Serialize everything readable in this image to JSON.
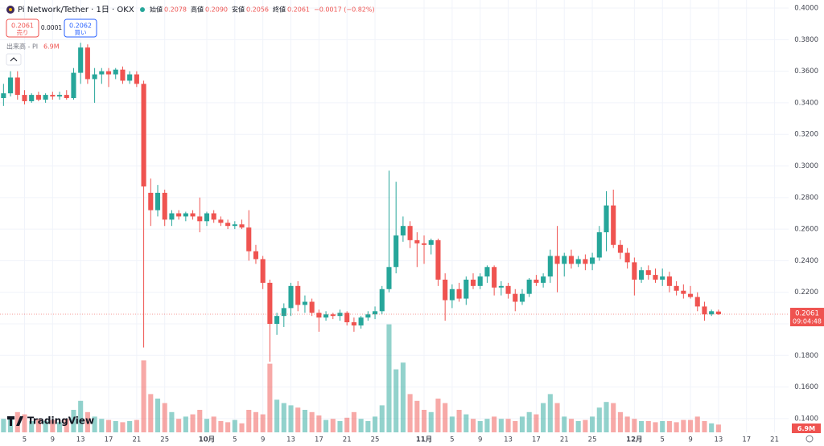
{
  "header": {
    "symbol": "Pi Network/Tether · 1日 · OKX",
    "ohlc": [
      {
        "label": "始値",
        "value": "0.2078"
      },
      {
        "label": "高値",
        "value": "0.2090"
      },
      {
        "label": "安値",
        "value": "0.2056"
      },
      {
        "label": "終値",
        "value": "0.2061"
      }
    ],
    "change": "−0.0017 (−0.82%)"
  },
  "order": {
    "sell_price": "0.2061",
    "sell_label": "売り",
    "spread": "0.0001",
    "buy_price": "0.2062",
    "buy_label": "買い"
  },
  "volume_legend": {
    "label": "出来高 - PI",
    "value": "6.9M"
  },
  "brand": "TradingView",
  "chart_data": {
    "type": "candlestick",
    "open": [
      0.343,
      0.346,
      0.356,
      0.345,
      0.341,
      0.345,
      0.342,
      0.345,
      0.344,
      0.345,
      0.343,
      0.359,
      0.375,
      0.355,
      0.358,
      0.36,
      0.358,
      0.361,
      0.354,
      0.358,
      0.352,
      0.283,
      0.272,
      0.283,
      0.266,
      0.27,
      0.268,
      0.27,
      0.268,
      0.265,
      0.27,
      0.266,
      0.264,
      0.262,
      0.263,
      0.261,
      0.246,
      0.241,
      0.226,
      0.2,
      0.205,
      0.21,
      0.224,
      0.212,
      0.214,
      0.207,
      0.204,
      0.206,
      0.205,
      0.207,
      0.201,
      0.199,
      0.204,
      0.206,
      0.208,
      0.222,
      0.236,
      0.256,
      0.262,
      0.253,
      0.251,
      0.25,
      0.253,
      0.228,
      0.215,
      0.222,
      0.216,
      0.228,
      0.224,
      0.23,
      0.236,
      0.223,
      0.224,
      0.219,
      0.214,
      0.219,
      0.228,
      0.226,
      0.23,
      0.243,
      0.238,
      0.243,
      0.238,
      0.241,
      0.238,
      0.242,
      0.258,
      0.275,
      0.25,
      0.245,
      0.239,
      0.228,
      0.234,
      0.231,
      0.228,
      0.23,
      0.224,
      0.221,
      0.219,
      0.217,
      0.211,
      0.206,
      0.2078
    ],
    "high": [
      0.352,
      0.36,
      0.36,
      0.348,
      0.346,
      0.347,
      0.346,
      0.347,
      0.347,
      0.348,
      0.362,
      0.378,
      0.377,
      0.362,
      0.362,
      0.362,
      0.362,
      0.363,
      0.36,
      0.36,
      0.354,
      0.292,
      0.288,
      0.285,
      0.272,
      0.272,
      0.271,
      0.272,
      0.28,
      0.271,
      0.272,
      0.268,
      0.266,
      0.265,
      0.266,
      0.272,
      0.25,
      0.243,
      0.228,
      0.207,
      0.213,
      0.226,
      0.227,
      0.218,
      0.216,
      0.209,
      0.208,
      0.207,
      0.209,
      0.208,
      0.204,
      0.205,
      0.208,
      0.211,
      0.224,
      0.297,
      0.29,
      0.268,
      0.265,
      0.258,
      0.256,
      0.254,
      0.254,
      0.232,
      0.225,
      0.226,
      0.23,
      0.232,
      0.232,
      0.237,
      0.237,
      0.227,
      0.226,
      0.222,
      0.222,
      0.229,
      0.231,
      0.232,
      0.247,
      0.262,
      0.245,
      0.247,
      0.243,
      0.244,
      0.245,
      0.262,
      0.284,
      0.285,
      0.253,
      0.248,
      0.242,
      0.236,
      0.237,
      0.235,
      0.235,
      0.233,
      0.227,
      0.225,
      0.224,
      0.22,
      0.214,
      0.209,
      0.209
    ],
    "low": [
      0.338,
      0.344,
      0.342,
      0.339,
      0.34,
      0.341,
      0.34,
      0.342,
      0.342,
      0.342,
      0.342,
      0.352,
      0.352,
      0.34,
      0.352,
      0.35,
      0.355,
      0.352,
      0.352,
      0.35,
      0.185,
      0.262,
      0.268,
      0.262,
      0.262,
      0.266,
      0.265,
      0.266,
      0.258,
      0.262,
      0.264,
      0.262,
      0.26,
      0.26,
      0.26,
      0.24,
      0.238,
      0.222,
      0.176,
      0.193,
      0.198,
      0.205,
      0.208,
      0.207,
      0.205,
      0.195,
      0.202,
      0.203,
      0.202,
      0.199,
      0.195,
      0.197,
      0.202,
      0.203,
      0.206,
      0.22,
      0.232,
      0.252,
      0.248,
      0.236,
      0.238,
      0.244,
      0.224,
      0.202,
      0.21,
      0.214,
      0.212,
      0.222,
      0.222,
      0.226,
      0.218,
      0.218,
      0.216,
      0.208,
      0.212,
      0.217,
      0.224,
      0.223,
      0.226,
      0.22,
      0.23,
      0.235,
      0.236,
      0.234,
      0.234,
      0.24,
      0.246,
      0.248,
      0.241,
      0.235,
      0.218,
      0.226,
      0.228,
      0.226,
      0.224,
      0.22,
      0.218,
      0.216,
      0.216,
      0.208,
      0.202,
      0.205,
      0.2056
    ],
    "close": [
      0.346,
      0.356,
      0.345,
      0.341,
      0.345,
      0.342,
      0.345,
      0.344,
      0.345,
      0.343,
      0.359,
      0.375,
      0.355,
      0.358,
      0.36,
      0.358,
      0.361,
      0.354,
      0.358,
      0.352,
      0.287,
      0.272,
      0.283,
      0.266,
      0.27,
      0.268,
      0.27,
      0.268,
      0.265,
      0.27,
      0.266,
      0.264,
      0.262,
      0.263,
      0.261,
      0.246,
      0.241,
      0.226,
      0.2,
      0.205,
      0.21,
      0.224,
      0.212,
      0.214,
      0.207,
      0.204,
      0.206,
      0.205,
      0.207,
      0.201,
      0.199,
      0.204,
      0.206,
      0.208,
      0.222,
      0.236,
      0.256,
      0.262,
      0.253,
      0.251,
      0.25,
      0.253,
      0.228,
      0.215,
      0.222,
      0.216,
      0.228,
      0.224,
      0.23,
      0.236,
      0.223,
      0.224,
      0.219,
      0.214,
      0.219,
      0.228,
      0.226,
      0.23,
      0.243,
      0.238,
      0.243,
      0.238,
      0.241,
      0.238,
      0.242,
      0.258,
      0.275,
      0.25,
      0.245,
      0.239,
      0.228,
      0.234,
      0.231,
      0.228,
      0.23,
      0.224,
      0.221,
      0.219,
      0.217,
      0.211,
      0.206,
      0.208,
      0.2061
    ],
    "volume": [
      12,
      14,
      18,
      16,
      10,
      12,
      10,
      11,
      9,
      12,
      20,
      28,
      18,
      14,
      12,
      11,
      10,
      9,
      10,
      11,
      64,
      34,
      30,
      26,
      18,
      12,
      14,
      16,
      20,
      12,
      14,
      10,
      9,
      11,
      8,
      20,
      18,
      16,
      61,
      29,
      26,
      24,
      22,
      20,
      18,
      15,
      11,
      12,
      10,
      13,
      18,
      12,
      10,
      14,
      24,
      96,
      56,
      62,
      34,
      28,
      20,
      18,
      30,
      26,
      14,
      20,
      16,
      12,
      10,
      12,
      14,
      12,
      12,
      10,
      14,
      18,
      16,
      26,
      34,
      26,
      14,
      12,
      10,
      11,
      14,
      22,
      27,
      26,
      18,
      14,
      12,
      10,
      10,
      9,
      10,
      10,
      9,
      11,
      11,
      14,
      10,
      8,
      6.9
    ],
    "up_color": "#26a69a",
    "down_color": "#ef5350",
    "xlim": [
      -0.5,
      112
    ],
    "xticks": [
      {
        "value": 3,
        "label": "5"
      },
      {
        "value": 7,
        "label": "9"
      },
      {
        "value": 11,
        "label": "13"
      },
      {
        "value": 15,
        "label": "17"
      },
      {
        "value": 19,
        "label": "21"
      },
      {
        "value": 23,
        "label": "25"
      },
      {
        "value": 29,
        "label": "10月"
      },
      {
        "value": 33,
        "label": "5"
      },
      {
        "value": 37,
        "label": "9"
      },
      {
        "value": 41,
        "label": "13"
      },
      {
        "value": 45,
        "label": "17"
      },
      {
        "value": 49,
        "label": "21"
      },
      {
        "value": 53,
        "label": "25"
      },
      {
        "value": 60,
        "label": "11月"
      },
      {
        "value": 64,
        "label": "5"
      },
      {
        "value": 68,
        "label": "9"
      },
      {
        "value": 72,
        "label": "13"
      },
      {
        "value": 76,
        "label": "17"
      },
      {
        "value": 80,
        "label": "21"
      },
      {
        "value": 84,
        "label": "25"
      },
      {
        "value": 90,
        "label": "12月"
      },
      {
        "value": 94,
        "label": "5"
      },
      {
        "value": 98,
        "label": "9"
      },
      {
        "value": 102,
        "label": "13"
      },
      {
        "value": 106,
        "label": "17"
      },
      {
        "value": 110,
        "label": "21"
      }
    ],
    "ylim": [
      0.1313,
      0.4051
    ],
    "yticks": [
      {
        "value": 0.14,
        "label": "0.1400"
      },
      {
        "value": 0.16,
        "label": "0.1600"
      },
      {
        "value": 0.18,
        "label": "0.1800"
      },
      {
        "value": 0.2,
        "label": "0.2000"
      },
      {
        "value": 0.22,
        "label": "0.2200"
      },
      {
        "value": 0.24,
        "label": "0.2400"
      },
      {
        "value": 0.26,
        "label": "0.2600"
      },
      {
        "value": 0.28,
        "label": "0.2800"
      },
      {
        "value": 0.3,
        "label": "0.3000"
      },
      {
        "value": 0.32,
        "label": "0.3200"
      },
      {
        "value": 0.34,
        "label": "0.3400"
      },
      {
        "value": 0.36,
        "label": "0.3600"
      },
      {
        "value": 0.38,
        "label": "0.3800"
      },
      {
        "value": 0.4,
        "label": "0.4000"
      }
    ],
    "volume_ylim": [
      0,
      100
    ],
    "grid": true,
    "last_price": {
      "value": 0.2061,
      "label": "0.2061",
      "countdown": "09:04:48"
    },
    "last_volume_label": "6.9M"
  }
}
